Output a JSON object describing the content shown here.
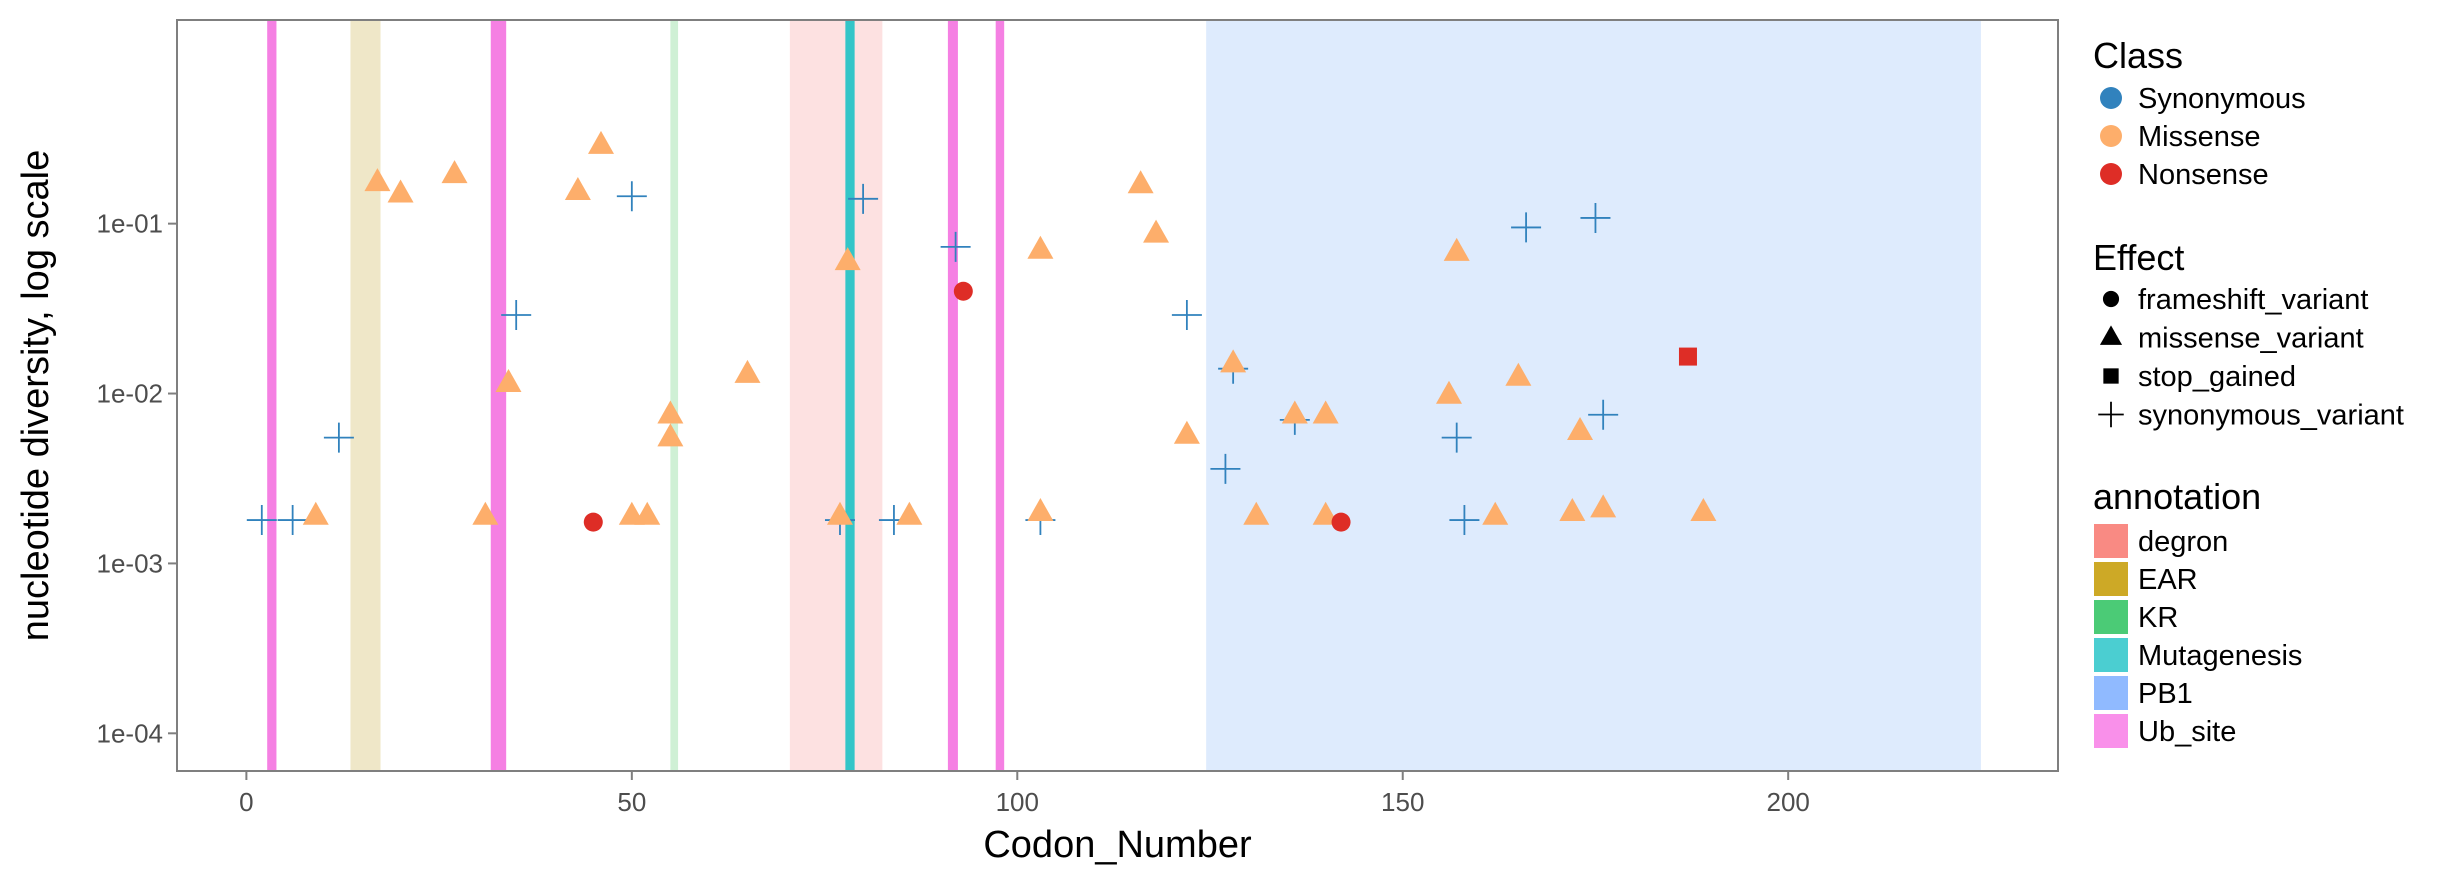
{
  "chart_data": {
    "type": "scatter",
    "title": "",
    "xlabel": "Codon_Number",
    "ylabel": "nucleotide diversity, log scale",
    "x_ticks": [
      0,
      50,
      100,
      150,
      200
    ],
    "x_tick_labels": [
      "0",
      "50",
      "100",
      "150",
      "200"
    ],
    "y_scale": "log10",
    "y_ticks": [
      0.0001,
      0.001,
      0.01,
      0.1
    ],
    "y_tick_labels": [
      "1e-04",
      "1e-03",
      "1e-02",
      "1e-01"
    ],
    "xlim": [
      -9,
      235
    ],
    "ylim": [
      6e-05,
      1.58
    ],
    "legend_position": "right",
    "legends": {
      "class": {
        "title": "Class",
        "items": [
          {
            "label": "Synonymous",
            "color": "#3182bd"
          },
          {
            "label": "Missense",
            "color": "#fdae6b"
          },
          {
            "label": "Nonsense",
            "color": "#de2d26"
          }
        ]
      },
      "effect": {
        "title": "Effect",
        "items": [
          {
            "label": "frameshift_variant",
            "shape": "circle"
          },
          {
            "label": "missense_variant",
            "shape": "triangle"
          },
          {
            "label": "stop_gained",
            "shape": "square"
          },
          {
            "label": "synonymous_variant",
            "shape": "cross"
          }
        ]
      },
      "annotation": {
        "title": "annotation",
        "items": [
          {
            "label": "degron",
            "color": "#F8766D"
          },
          {
            "label": "EAR",
            "color": "#C49A00"
          },
          {
            "label": "KR",
            "color": "#2BC25E"
          },
          {
            "label": "Mutagenesis",
            "color": "#2BC5C9"
          },
          {
            "label": "PB1",
            "color": "#7CAEFF"
          },
          {
            "label": "Ub_site",
            "color": "#F87CE6"
          }
        ]
      }
    },
    "annotation_regions": [
      {
        "annotation": "Ub_site",
        "start": 2.7,
        "end": 3.9,
        "color": "#F580E3",
        "opacity": 1
      },
      {
        "annotation": "EAR",
        "start": 13.5,
        "end": 17.4,
        "color": "#EFE7C8",
        "opacity": 1
      },
      {
        "annotation": "Ub_site",
        "start": 31.7,
        "end": 33.7,
        "color": "#F580E3",
        "opacity": 1
      },
      {
        "annotation": "KR",
        "start": 55,
        "end": 56,
        "color": "#CFF0D5",
        "opacity": 1
      },
      {
        "annotation": "degron",
        "start": 70.5,
        "end": 82.5,
        "color": "#FDE1E1",
        "opacity": 1
      },
      {
        "annotation": "Mutagenesis",
        "start": 77.7,
        "end": 78.9,
        "color": "#33C5C8",
        "opacity": 1
      },
      {
        "annotation": "Ub_site",
        "start": 91,
        "end": 92.3,
        "color": "#F580E3",
        "opacity": 1
      },
      {
        "annotation": "Ub_site",
        "start": 97.2,
        "end": 98.3,
        "color": "#F580E3",
        "opacity": 1
      },
      {
        "annotation": "PB1",
        "start": 124.5,
        "end": 225,
        "color": "#DEEBFD",
        "opacity": 1
      }
    ],
    "series": [
      {
        "name": "Synonymous",
        "color": "#3182bd",
        "effect": "synonymous_variant",
        "shape": "cross",
        "points": [
          {
            "x": 2,
            "y": 0.0018
          },
          {
            "x": 6,
            "y": 0.0018
          },
          {
            "x": 12,
            "y": 0.0055
          },
          {
            "x": 35,
            "y": 0.029
          },
          {
            "x": 50,
            "y": 0.145
          },
          {
            "x": 77,
            "y": 0.0018
          },
          {
            "x": 80,
            "y": 0.14
          },
          {
            "x": 84,
            "y": 0.0018
          },
          {
            "x": 92,
            "y": 0.073
          },
          {
            "x": 103,
            "y": 0.0018
          },
          {
            "x": 122,
            "y": 0.029
          },
          {
            "x": 127,
            "y": 0.0036
          },
          {
            "x": 128,
            "y": 0.014
          },
          {
            "x": 136,
            "y": 0.007
          },
          {
            "x": 157,
            "y": 0.0055
          },
          {
            "x": 158,
            "y": 0.0018
          },
          {
            "x": 166,
            "y": 0.095
          },
          {
            "x": 175,
            "y": 0.108
          },
          {
            "x": 176,
            "y": 0.0075
          }
        ]
      },
      {
        "name": "Missense",
        "color": "#fdae6b",
        "effect": "missense_variant",
        "shape": "triangle",
        "points": [
          {
            "x": 9,
            "y": 0.0019
          },
          {
            "x": 17,
            "y": 0.175
          },
          {
            "x": 20,
            "y": 0.15
          },
          {
            "x": 27,
            "y": 0.195
          },
          {
            "x": 31,
            "y": 0.0019
          },
          {
            "x": 34,
            "y": 0.0115
          },
          {
            "x": 43,
            "y": 0.155
          },
          {
            "x": 46,
            "y": 0.29
          },
          {
            "x": 50,
            "y": 0.0019
          },
          {
            "x": 52,
            "y": 0.0019
          },
          {
            "x": 55,
            "y": 0.0075
          },
          {
            "x": 55,
            "y": 0.0055
          },
          {
            "x": 65,
            "y": 0.013
          },
          {
            "x": 77,
            "y": 0.0019
          },
          {
            "x": 78,
            "y": 0.06
          },
          {
            "x": 86,
            "y": 0.0019
          },
          {
            "x": 103,
            "y": 0.07
          },
          {
            "x": 103,
            "y": 0.002
          },
          {
            "x": 116,
            "y": 0.17
          },
          {
            "x": 118,
            "y": 0.087
          },
          {
            "x": 122,
            "y": 0.0057
          },
          {
            "x": 128,
            "y": 0.015
          },
          {
            "x": 131,
            "y": 0.0019
          },
          {
            "x": 136,
            "y": 0.0075
          },
          {
            "x": 140,
            "y": 0.0075
          },
          {
            "x": 140,
            "y": 0.0019
          },
          {
            "x": 156,
            "y": 0.0098
          },
          {
            "x": 157,
            "y": 0.068
          },
          {
            "x": 162,
            "y": 0.0019
          },
          {
            "x": 165,
            "y": 0.0125
          },
          {
            "x": 172,
            "y": 0.002
          },
          {
            "x": 173,
            "y": 0.006
          },
          {
            "x": 176,
            "y": 0.0021
          },
          {
            "x": 189,
            "y": 0.002
          }
        ]
      },
      {
        "name": "Nonsense",
        "color": "#de2d26",
        "points": [
          {
            "x": 45,
            "y": 0.00175,
            "effect": "frameshift_variant",
            "shape": "circle"
          },
          {
            "x": 93,
            "y": 0.04,
            "effect": "frameshift_variant",
            "shape": "circle"
          },
          {
            "x": 142,
            "y": 0.00175,
            "effect": "frameshift_variant",
            "shape": "circle"
          },
          {
            "x": 187,
            "y": 0.0165,
            "effect": "stop_gained",
            "shape": "square"
          }
        ]
      }
    ]
  }
}
